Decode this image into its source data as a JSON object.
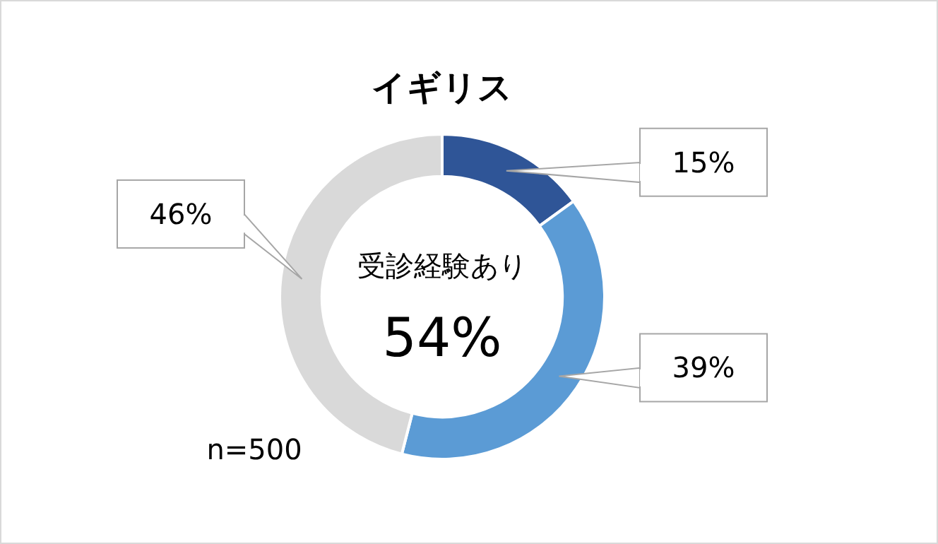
{
  "chart_data": {
    "type": "donut",
    "title": "イギリス",
    "categories": [
      null,
      null,
      null
    ],
    "values": [
      15,
      39,
      46
    ],
    "colors": [
      "#2f5597",
      "#5b9bd5",
      "#d9d9d9"
    ],
    "value_labels": [
      "15%",
      "39%",
      "46%"
    ],
    "annotations": [
      "受診経験あり",
      "54%",
      "n=500"
    ]
  }
}
